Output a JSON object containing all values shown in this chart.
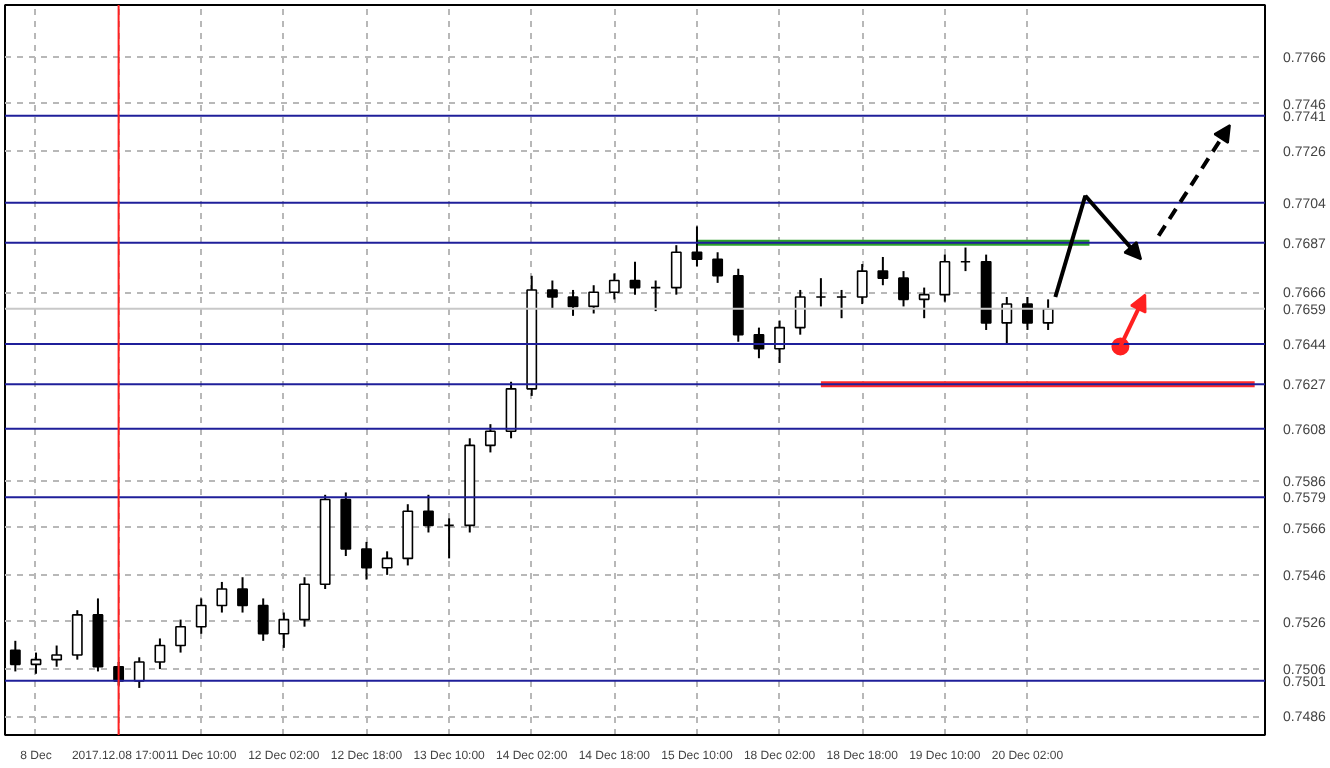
{
  "chart_data": {
    "type": "candlestick",
    "color": "#000000",
    "categories": [
      null,
      "8 Dec",
      null,
      null,
      null,
      "2017.12.08 17:00",
      null,
      null,
      null,
      "11 Dec 10:00",
      null,
      null,
      null,
      "12 Dec 02:00",
      null,
      null,
      null,
      "12 Dec 18:00",
      null,
      null,
      null,
      "13 Dec 10:00",
      null,
      null,
      null,
      "14 Dec 02:00",
      null,
      null,
      null,
      "14 Dec 18:00",
      null,
      null,
      null,
      "15 Dec 10:00",
      null,
      null,
      null,
      "18 Dec 02:00",
      null,
      null,
      null,
      "18 Dec 18:00",
      null,
      null,
      null,
      "19 Dec 10:00",
      null,
      null,
      null,
      "20 Dec 02:00",
      null,
      null,
      null,
      null,
      null,
      null,
      null,
      null,
      null,
      null,
      null
    ],
    "ohlc": [
      [
        0.7514,
        0.7518,
        0.7505,
        0.7508
      ],
      [
        0.7508,
        0.7513,
        0.7504,
        0.751
      ],
      [
        0.751,
        0.7516,
        0.7507,
        0.7512
      ],
      [
        0.7512,
        0.7531,
        0.751,
        0.7529
      ],
      [
        0.7529,
        0.7536,
        0.7505,
        0.7507
      ],
      [
        0.7507,
        0.7509,
        0.7499,
        0.7501
      ],
      [
        0.7501,
        0.7511,
        0.7498,
        0.7509
      ],
      [
        0.7509,
        0.7519,
        0.7506,
        0.7516
      ],
      [
        0.7516,
        0.7527,
        0.7513,
        0.7524
      ],
      [
        0.7524,
        0.7536,
        0.7521,
        0.7533
      ],
      [
        0.7533,
        0.7543,
        0.753,
        0.754
      ],
      [
        0.754,
        0.7545,
        0.753,
        0.7533
      ],
      [
        0.7533,
        0.7536,
        0.7518,
        0.7521
      ],
      [
        0.7521,
        0.753,
        0.7515,
        0.7527
      ],
      [
        0.7527,
        0.7545,
        0.7524,
        0.7542
      ],
      [
        0.7542,
        0.758,
        0.754,
        0.7578
      ],
      [
        0.7578,
        0.7581,
        0.7554,
        0.7557
      ],
      [
        0.7557,
        0.756,
        0.7544,
        0.7549
      ],
      [
        0.7549,
        0.7556,
        0.7546,
        0.7553
      ],
      [
        0.7553,
        0.7576,
        0.755,
        0.7573
      ],
      [
        0.7573,
        0.758,
        0.7564,
        0.7567
      ],
      [
        0.7567,
        0.757,
        0.7553,
        0.7567
      ],
      [
        0.7567,
        0.7604,
        0.7564,
        0.7601
      ],
      [
        0.7601,
        0.761,
        0.7598,
        0.7607
      ],
      [
        0.7607,
        0.7628,
        0.7604,
        0.7625
      ],
      [
        0.7625,
        0.7673,
        0.7622,
        0.7667
      ],
      [
        0.7667,
        0.7671,
        0.7659,
        0.7664
      ],
      [
        0.7664,
        0.7667,
        0.7656,
        0.766
      ],
      [
        0.766,
        0.7669,
        0.7657,
        0.7666
      ],
      [
        0.7666,
        0.7674,
        0.7663,
        0.7671
      ],
      [
        0.7671,
        0.7679,
        0.7665,
        0.7668
      ],
      [
        0.7668,
        0.7671,
        0.7658,
        0.7668
      ],
      [
        0.7668,
        0.7686,
        0.7665,
        0.7683
      ],
      [
        0.7683,
        0.7694,
        0.7677,
        0.768
      ],
      [
        0.768,
        0.7683,
        0.767,
        0.7673
      ],
      [
        0.7673,
        0.7676,
        0.7645,
        0.7648
      ],
      [
        0.7648,
        0.7651,
        0.7638,
        0.7642
      ],
      [
        0.7642,
        0.7654,
        0.7636,
        0.7651
      ],
      [
        0.7651,
        0.7667,
        0.7648,
        0.7664
      ],
      [
        0.7664,
        0.7672,
        0.766,
        0.7664
      ],
      [
        0.7664,
        0.7667,
        0.7655,
        0.7664
      ],
      [
        0.7664,
        0.7678,
        0.7661,
        0.7675
      ],
      [
        0.7675,
        0.7681,
        0.7669,
        0.7672
      ],
      [
        0.7672,
        0.7675,
        0.766,
        0.7663
      ],
      [
        0.7663,
        0.7668,
        0.7655,
        0.7665
      ],
      [
        0.7665,
        0.7682,
        0.7662,
        0.7679
      ],
      [
        0.7679,
        0.7685,
        0.7675,
        0.7679
      ],
      [
        0.7679,
        0.7682,
        0.765,
        0.7653
      ],
      [
        0.7653,
        0.7664,
        0.7644,
        0.7661
      ],
      [
        0.7661,
        0.7664,
        0.765,
        0.7653
      ],
      [
        0.7653,
        0.7663,
        0.765,
        0.7659
      ],
      null,
      null,
      null,
      null,
      null,
      null,
      null,
      null,
      null,
      null
    ],
    "series": [
      {
        "type": "line",
        "color": "#2ca02c",
        "values": [
          null,
          null,
          null,
          null,
          null,
          null,
          null,
          null,
          null,
          null,
          null,
          null,
          null,
          null,
          null,
          null,
          null,
          null,
          null,
          null,
          null,
          null,
          null,
          null,
          null,
          null,
          null,
          null,
          null,
          null,
          null,
          null,
          null,
          0.7687,
          0.7687,
          0.7687,
          0.7687,
          0.7687,
          0.7687,
          0.7687,
          0.7687,
          0.7687,
          0.7687,
          0.7687,
          0.7687,
          0.7687,
          0.7687,
          0.7687,
          0.7687,
          0.7687,
          0.7687,
          0.7687,
          0.7687,
          null,
          null,
          null,
          null,
          null,
          null,
          null,
          null
        ]
      },
      {
        "type": "line",
        "color": "#ff2a2a",
        "values": [
          null,
          null,
          null,
          null,
          null,
          null,
          null,
          null,
          null,
          null,
          null,
          null,
          null,
          null,
          null,
          null,
          null,
          null,
          null,
          null,
          null,
          null,
          null,
          null,
          null,
          null,
          null,
          null,
          null,
          null,
          null,
          null,
          null,
          null,
          null,
          null,
          null,
          null,
          null,
          0.7627,
          0.7627,
          0.7627,
          0.7627,
          0.7627,
          0.7627,
          0.7627,
          0.7627,
          0.7627,
          0.7627,
          0.7627,
          0.7627,
          0.7627,
          0.7627,
          0.7627,
          0.7627,
          0.7627,
          0.7627,
          0.7627,
          0.7627,
          0.7627,
          0.7627
        ]
      }
    ],
    "ylim": [
      0.7478,
      0.7788
    ],
    "yticks": [
      0.7486,
      0.7506,
      0.7526,
      0.7546,
      0.7566,
      0.7586,
      0.7666,
      0.7726,
      0.7746,
      0.7766
    ],
    "ref_lines": [
      {
        "axis": "y",
        "value": 0.7741,
        "label": "0.7741",
        "color": "#1f1f9a"
      },
      {
        "axis": "y",
        "value": 0.7704,
        "label": "0.7704",
        "color": "#1f1f9a"
      },
      {
        "axis": "y",
        "value": 0.7687,
        "label": "0.7687",
        "color": "#1f1f9a"
      },
      {
        "axis": "y",
        "value": 0.7659,
        "label": "0.7659",
        "color": "#c8c8c8"
      },
      {
        "axis": "y",
        "value": 0.7644,
        "label": "0.7644",
        "color": "#1f1f9a"
      },
      {
        "axis": "y",
        "value": 0.7627,
        "label": "0.7627",
        "color": "#1f1f9a"
      },
      {
        "axis": "y",
        "value": 0.7608,
        "label": "0.7608",
        "color": "#1f1f9a"
      },
      {
        "axis": "y",
        "value": 0.7579,
        "label": "0.7579",
        "color": "#1f1f9a"
      },
      {
        "axis": "y",
        "value": 0.7501,
        "label": "0.7501",
        "color": "#1f1f9a"
      },
      {
        "axis": "x",
        "value": "2017.12.08 17:00",
        "color": "#ff2020"
      }
    ],
    "grid": true
  }
}
